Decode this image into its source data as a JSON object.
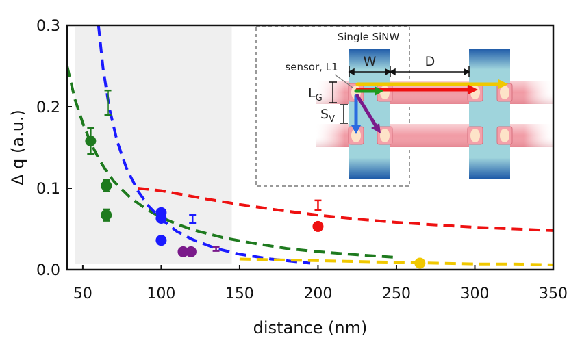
{
  "chart_data": {
    "type": "scatter",
    "xlabel": "distance (nm)",
    "ylabel": "Δ q (a.u.)",
    "xlim": [
      40,
      350
    ],
    "ylim": [
      0,
      0.3
    ],
    "xticks": [
      50,
      100,
      150,
      200,
      250,
      300,
      350
    ],
    "yticks": [
      "0.0",
      "0.1",
      "0.2",
      "0.3"
    ],
    "shaded_region": {
      "x": [
        40,
        145
      ]
    },
    "points": [
      {
        "color": "#1e7a1e",
        "x": 55,
        "y": 0.158,
        "err": 0.016
      },
      {
        "color": "#1e7a1e",
        "x": 65,
        "y": 0.103,
        "err": 0.007
      },
      {
        "color": "#1e7a1e",
        "x": 65,
        "y": 0.067,
        "err": 0.007
      },
      {
        "color": "#1a1aff",
        "x": 100,
        "y": 0.07,
        "err": 0.004
      },
      {
        "color": "#1a1aff",
        "x": 100,
        "y": 0.063,
        "err": 0.004
      },
      {
        "color": "#1a1aff",
        "x": 100,
        "y": 0.036,
        "err": 0.004
      },
      {
        "color": "#7a1a8a",
        "x": 114,
        "y": 0.022,
        "err": 0.003
      },
      {
        "color": "#7a1a8a",
        "x": 119,
        "y": 0.022,
        "err": 0.003
      },
      {
        "color": "#ee1111",
        "x": 200,
        "y": 0.053,
        "err": 0.004
      },
      {
        "color": "#f0c800",
        "x": 265,
        "y": 0.008,
        "err": 0.002
      }
    ],
    "error_bars_only": [
      {
        "color": "#1e7a1e",
        "x": 66,
        "ylow": 0.19,
        "yhigh": 0.22
      },
      {
        "color": "#1a1aff",
        "x": 120,
        "ylow": 0.057,
        "yhigh": 0.067
      },
      {
        "color": "#7a1a8a",
        "x": 135,
        "ylow": 0.023,
        "yhigh": 0.028
      },
      {
        "color": "#ee1111",
        "x": 200,
        "ylow": 0.073,
        "yhigh": 0.085
      }
    ],
    "curves": [
      {
        "name": "green fit",
        "color": "#1e7a1e",
        "x": [
          40,
          45,
          50,
          55,
          60,
          65,
          70,
          80,
          90,
          100,
          110,
          120,
          140,
          160,
          180,
          200,
          220,
          250
        ],
        "y": [
          0.25,
          0.209,
          0.18,
          0.156,
          0.137,
          0.121,
          0.108,
          0.089,
          0.075,
          0.064,
          0.056,
          0.049,
          0.039,
          0.032,
          0.026,
          0.022,
          0.019,
          0.015
        ]
      },
      {
        "name": "blue fit",
        "color": "#1a1aff",
        "x": [
          60,
          63,
          67,
          72,
          78,
          85,
          92,
          100,
          110,
          120,
          135,
          150,
          170,
          195
        ],
        "y": [
          0.3,
          0.246,
          0.198,
          0.157,
          0.124,
          0.097,
          0.078,
          0.062,
          0.047,
          0.037,
          0.026,
          0.019,
          0.013,
          0.008
        ]
      },
      {
        "name": "red fit",
        "color": "#ee1111",
        "x": [
          85,
          100,
          125,
          150,
          175,
          200,
          225,
          250,
          275,
          300,
          325,
          350
        ],
        "y": [
          0.1,
          0.097,
          0.088,
          0.08,
          0.073,
          0.067,
          0.062,
          0.058,
          0.055,
          0.052,
          0.05,
          0.048
        ]
      },
      {
        "name": "yellow fit",
        "color": "#f0c800",
        "x": [
          150,
          175,
          200,
          225,
          250,
          275,
          300,
          325,
          350
        ],
        "y": [
          0.013,
          0.012,
          0.011,
          0.01,
          0.009,
          0.008,
          0.007,
          0.007,
          0.006
        ]
      }
    ],
    "inset": {
      "title": "Single SiNW",
      "labels": {
        "width": "W",
        "distance": "D",
        "sensor": "sensor, L1",
        "lg_main": "L",
        "lg_sub": "G",
        "sv_main": "S",
        "sv_sub": "V"
      }
    }
  },
  "colors": {
    "shade": "#efefef",
    "green": "#1e7a1e",
    "blue": "#1a1aff",
    "red": "#ee1111",
    "purple": "#7a1a8a",
    "yellow": "#f0c800"
  }
}
